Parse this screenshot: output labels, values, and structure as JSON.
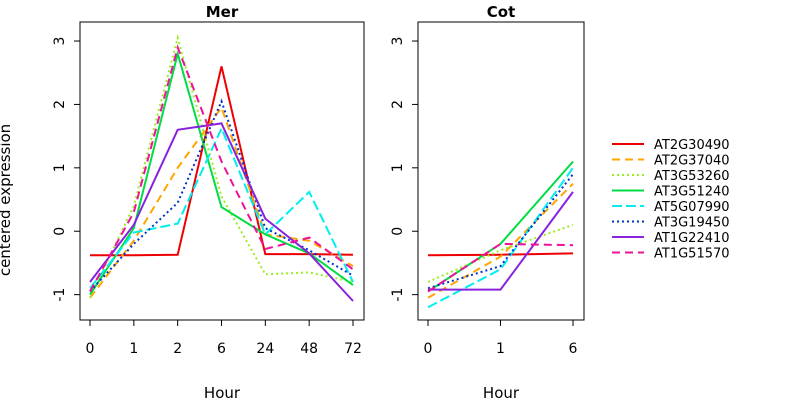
{
  "chart_data": [
    {
      "type": "line",
      "title": "Mer",
      "xlabel": "Hour",
      "ylabel": "centered expression",
      "categories": [
        "0",
        "1",
        "2",
        "6",
        "24",
        "48",
        "72"
      ],
      "ylim": [
        -1.4,
        3.3
      ],
      "yticks": [
        "-1",
        "0",
        "1",
        "2",
        "3"
      ],
      "grid": false,
      "series": [
        {
          "name": "AT2G30490",
          "color": "#ee0000",
          "dash": "solid",
          "values": [
            -0.38,
            -0.38,
            -0.37,
            2.6,
            -0.36,
            -0.36,
            -0.37
          ]
        },
        {
          "name": "AT2G37040",
          "color": "#ffa500",
          "dash": "dashed",
          "values": [
            -1.05,
            -0.15,
            1.0,
            1.95,
            -0.05,
            -0.15,
            -0.55
          ]
        },
        {
          "name": "AT3G53260",
          "color": "#99ee22",
          "dash": "dotted",
          "values": [
            -1.05,
            0.4,
            3.05,
            0.55,
            -0.68,
            -0.65,
            -0.8
          ]
        },
        {
          "name": "AT3G51240",
          "color": "#00dd44",
          "dash": "solid",
          "values": [
            -1.0,
            0.05,
            2.8,
            0.38,
            -0.05,
            -0.35,
            -0.85
          ]
        },
        {
          "name": "AT5G07990",
          "color": "#00eeee",
          "dash": "longdash",
          "values": [
            -0.9,
            -0.02,
            0.12,
            1.62,
            -0.05,
            0.62,
            -0.8
          ]
        },
        {
          "name": "AT3G19450",
          "color": "#0033cc",
          "dash": "dotted",
          "values": [
            -0.95,
            -0.2,
            0.45,
            2.05,
            0.05,
            -0.3,
            -0.7
          ]
        },
        {
          "name": "AT1G22410",
          "color": "#8822dd",
          "dash": "solid",
          "values": [
            -0.8,
            0.1,
            1.6,
            1.7,
            0.2,
            -0.35,
            -1.1
          ]
        },
        {
          "name": "AT1G51570",
          "color": "#ee1199",
          "dash": "dashed",
          "values": [
            -0.95,
            0.3,
            2.9,
            1.1,
            -0.28,
            -0.1,
            -0.6
          ]
        }
      ]
    },
    {
      "type": "line",
      "title": "Cot",
      "xlabel": "Hour",
      "ylabel": "",
      "categories": [
        "0",
        "1",
        "6"
      ],
      "ylim": [
        -1.4,
        3.3
      ],
      "yticks": [
        "-1",
        "0",
        "1",
        "2",
        "3"
      ],
      "grid": false,
      "series": [
        {
          "name": "AT2G30490",
          "color": "#ee0000",
          "dash": "solid",
          "values": [
            -0.38,
            -0.37,
            -0.35
          ]
        },
        {
          "name": "AT2G37040",
          "color": "#ffa500",
          "dash": "dashed",
          "values": [
            -1.05,
            -0.4,
            0.75
          ]
        },
        {
          "name": "AT3G53260",
          "color": "#99ee22",
          "dash": "dotted",
          "values": [
            -0.8,
            -0.3,
            0.1
          ]
        },
        {
          "name": "AT3G51240",
          "color": "#00dd44",
          "dash": "solid",
          "values": [
            -0.95,
            -0.2,
            1.1
          ]
        },
        {
          "name": "AT5G07990",
          "color": "#00eeee",
          "dash": "longdash",
          "values": [
            -1.2,
            -0.6,
            1.0
          ]
        },
        {
          "name": "AT3G19450",
          "color": "#0033cc",
          "dash": "dotted",
          "values": [
            -0.9,
            -0.55,
            0.9
          ]
        },
        {
          "name": "AT1G22410",
          "color": "#8822dd",
          "dash": "solid",
          "values": [
            -0.92,
            -0.92,
            0.62
          ]
        },
        {
          "name": "AT1G51570",
          "color": "#ee1199",
          "dash": "dashed",
          "values": [
            -0.95,
            -0.2,
            -0.22
          ]
        }
      ]
    }
  ],
  "legend": {
    "placement": "right",
    "entries": [
      {
        "name": "AT2G30490",
        "color": "#ee0000",
        "dash": "solid"
      },
      {
        "name": "AT2G37040",
        "color": "#ffa500",
        "dash": "dashed"
      },
      {
        "name": "AT3G53260",
        "color": "#99ee22",
        "dash": "dotted"
      },
      {
        "name": "AT3G51240",
        "color": "#00dd44",
        "dash": "solid"
      },
      {
        "name": "AT5G07990",
        "color": "#00eeee",
        "dash": "longdash"
      },
      {
        "name": "AT3G19450",
        "color": "#0033cc",
        "dash": "dotted"
      },
      {
        "name": "AT1G22410",
        "color": "#8822dd",
        "dash": "solid"
      },
      {
        "name": "AT1G51570",
        "color": "#ee1199",
        "dash": "dashed"
      }
    ]
  }
}
